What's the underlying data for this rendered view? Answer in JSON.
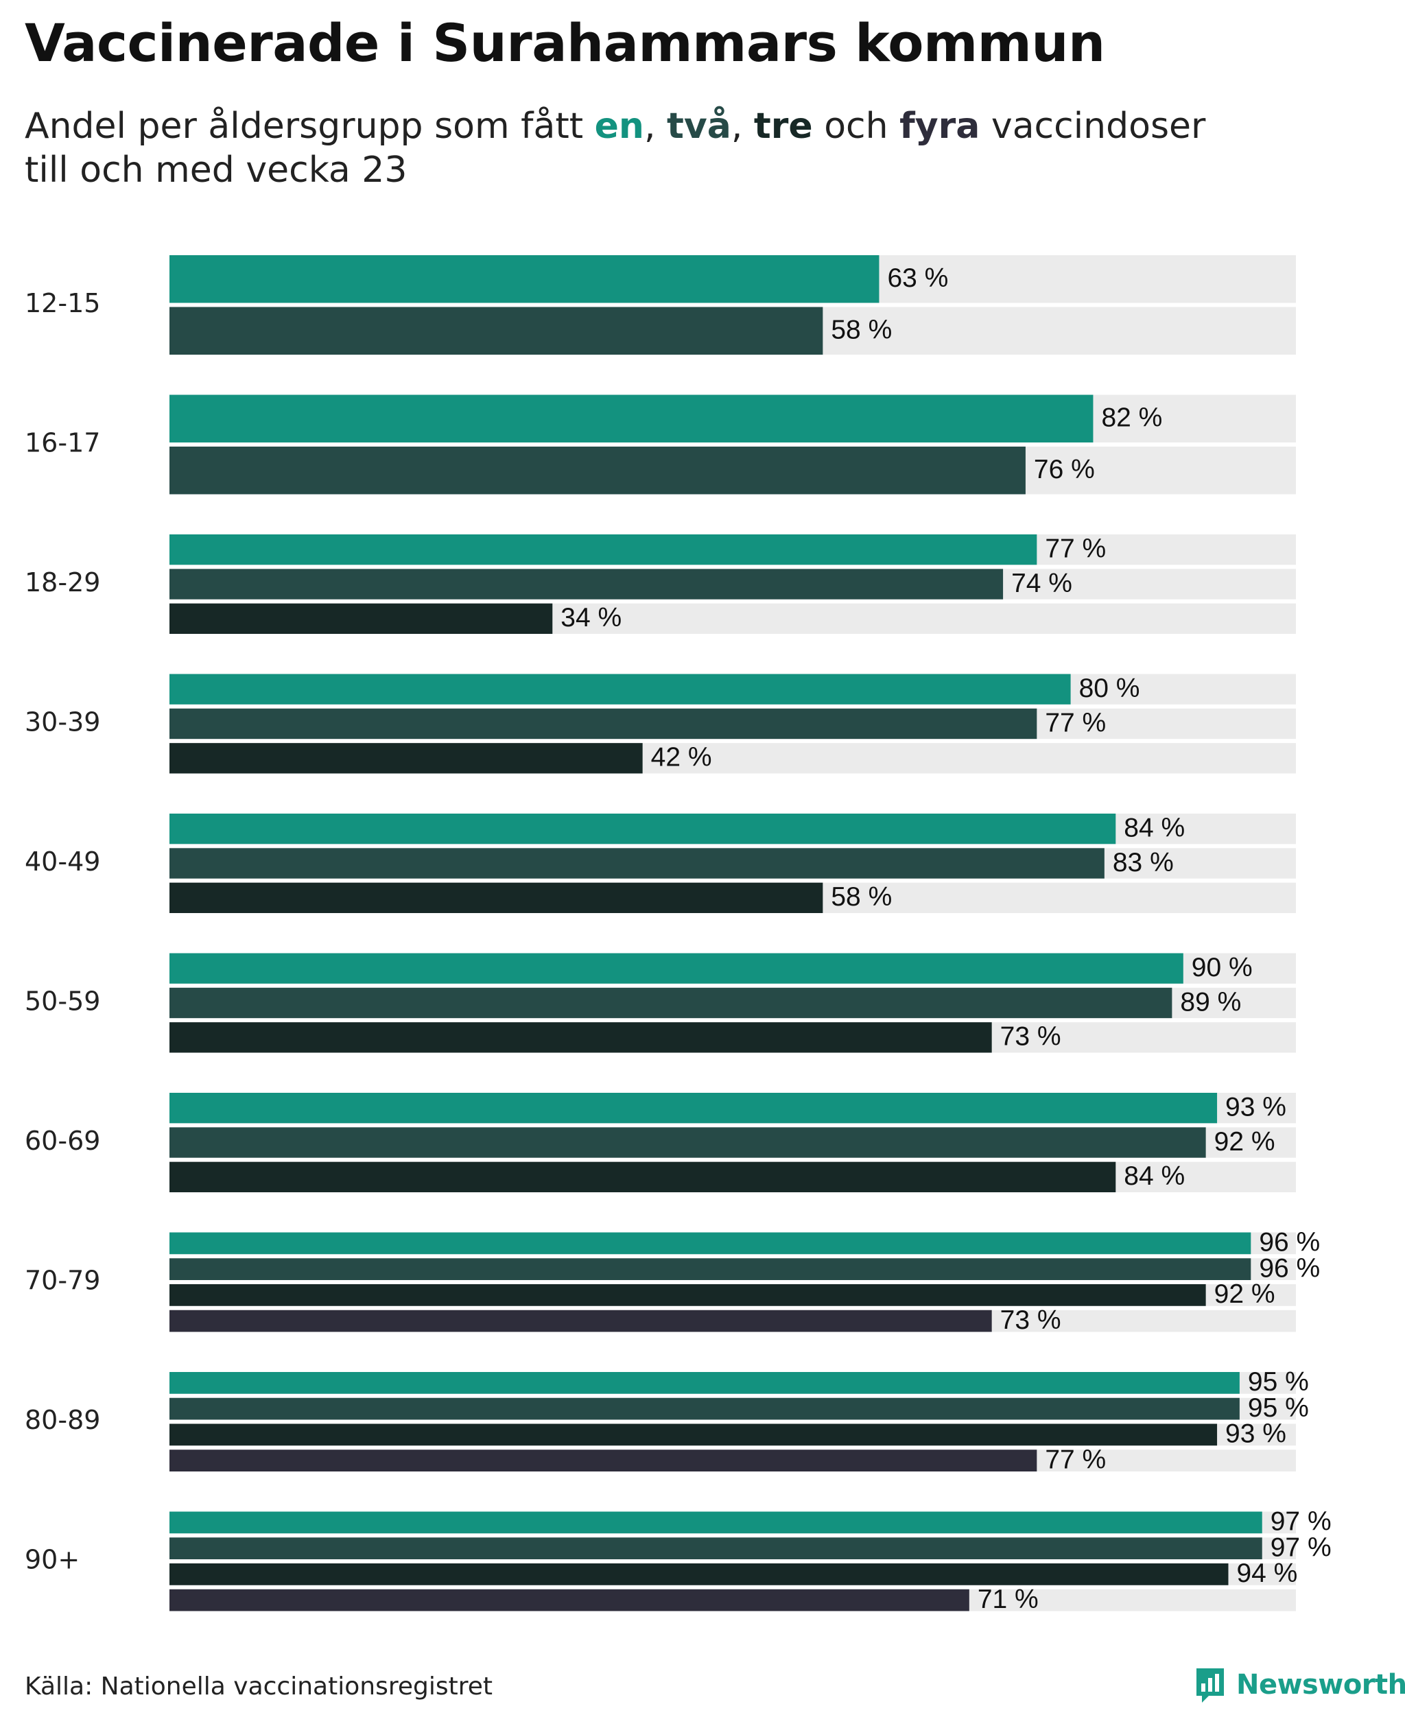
{
  "title": "Vaccinerade i Surahammars kommun",
  "subtitle": {
    "prefix": "Andel per åldersgrupp som fått ",
    "kw1": "en",
    "sep1": ", ",
    "kw2": "två",
    "sep2": ", ",
    "kw3": "tre",
    "sep3": " och ",
    "kw4": "fyra",
    "suffix": " vaccindoser",
    "line2": "till och med vecka 23"
  },
  "colors": {
    "dose1": "#13927f",
    "dose2": "#264a47",
    "dose3": "#172826",
    "dose4": "#2e2d3b",
    "track": "#ebebeb"
  },
  "chart_data": {
    "type": "bar",
    "orientation": "horizontal",
    "unit": "%",
    "xlim": [
      0,
      100
    ],
    "grid": false,
    "categories": [
      "12-15",
      "16-17",
      "18-29",
      "30-39",
      "40-49",
      "50-59",
      "60-69",
      "70-79",
      "80-89",
      "90+"
    ],
    "series": [
      {
        "values": [
          63,
          82,
          77,
          80,
          84,
          90,
          93,
          96,
          95,
          97
        ]
      },
      {
        "values": [
          58,
          76,
          74,
          77,
          83,
          89,
          92,
          96,
          95,
          97
        ]
      },
      {
        "values": [
          null,
          null,
          34,
          42,
          58,
          73,
          84,
          92,
          93,
          94
        ]
      },
      {
        "values": [
          null,
          null,
          null,
          null,
          null,
          null,
          null,
          73,
          77,
          71
        ]
      }
    ]
  },
  "source": "Källa: Nationella vaccinationsregistret",
  "logo": {
    "icon": "newsworthy-logo-icon",
    "text": "Newsworthy"
  }
}
